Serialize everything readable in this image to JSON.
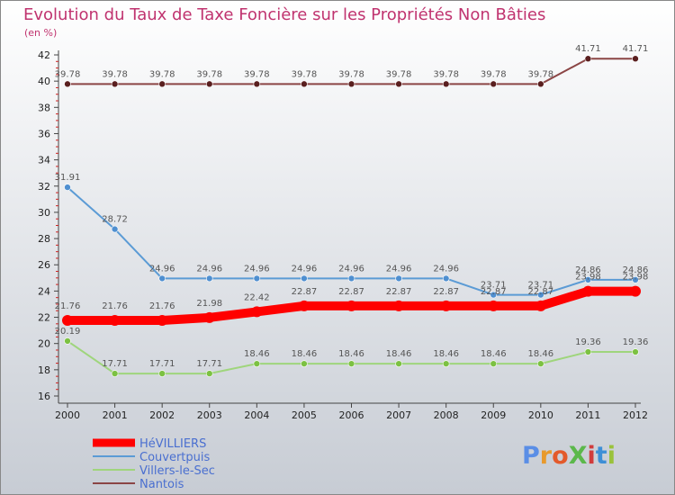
{
  "colors": {
    "title": "#c0336f",
    "legend_text": "#4a6fd0",
    "axis": "#444444",
    "minor_tick": "#cc2222",
    "background_top": "#ffffff",
    "background_bottom": "#c7ccd4"
  },
  "brand": {
    "text": "ProXiti",
    "letter_colors": [
      "#5a8ee6",
      "#e89a2c",
      "#e35a2b",
      "#5bb84b",
      "#d13c3c",
      "#3e8fd6",
      "#9ac23b"
    ]
  },
  "chart_data": {
    "type": "line",
    "title": "Evolution du Taux de Taxe Foncière sur les Propriétés Non Bâties",
    "ylabel": "(en %)",
    "xlabel": "",
    "x": [
      "2000",
      "2001",
      "2002",
      "2003",
      "2004",
      "2005",
      "2006",
      "2007",
      "2008",
      "2009",
      "2010",
      "2011",
      "2012"
    ],
    "ylim": [
      16,
      42
    ],
    "yticks": [
      16,
      18,
      20,
      22,
      24,
      26,
      28,
      30,
      32,
      34,
      36,
      38,
      40,
      42
    ],
    "grid": false,
    "legend": "bottom-left",
    "series": [
      {
        "name": "HéVILLIERS",
        "color": "#ff0000",
        "thick": true,
        "values": [
          21.76,
          21.76,
          21.76,
          21.98,
          22.42,
          22.87,
          22.87,
          22.87,
          22.87,
          22.87,
          22.87,
          23.98,
          23.98
        ],
        "labels": [
          "21.76",
          "21.76",
          "21.76",
          "21.98",
          "22.42",
          "22.87",
          "22.87",
          "22.87",
          "22.87",
          "22.87",
          "22.87",
          "23.98",
          "23.98"
        ]
      },
      {
        "name": "Couvertpuis",
        "color": "#5b9bd5",
        "marker_fill": "#4f8fd0",
        "values": [
          31.91,
          28.72,
          24.96,
          24.96,
          24.96,
          24.96,
          24.96,
          24.96,
          24.96,
          23.71,
          23.71,
          24.86,
          24.86
        ],
        "labels": [
          "31.91",
          "28.72",
          "24.96",
          "24.96",
          "24.96",
          "24.96",
          "24.96",
          "24.96",
          "24.96",
          "23.71",
          "23.71",
          "24.86",
          "24.86"
        ]
      },
      {
        "name": "Villers-le-Sec",
        "color": "#9fd57c",
        "marker_fill": "#7cc142",
        "values": [
          20.19,
          17.71,
          17.71,
          17.71,
          18.46,
          18.46,
          18.46,
          18.46,
          18.46,
          18.46,
          18.46,
          19.36,
          19.36
        ],
        "labels": [
          "20.19",
          "17.71",
          "17.71",
          "17.71",
          "18.46",
          "18.46",
          "18.46",
          "18.46",
          "18.46",
          "18.46",
          "18.46",
          "19.36",
          "19.36"
        ]
      },
      {
        "name": "Nantois",
        "color": "#8b4545",
        "marker_fill": "#5a1f1f",
        "values": [
          39.78,
          39.78,
          39.78,
          39.78,
          39.78,
          39.78,
          39.78,
          39.78,
          39.78,
          39.78,
          39.78,
          41.71,
          41.71
        ],
        "labels": [
          "39.78",
          "39.78",
          "39.78",
          "39.78",
          "39.78",
          "39.78",
          "39.78",
          "39.78",
          "39.78",
          "39.78",
          "39.78",
          "41.71",
          "41.71"
        ]
      }
    ],
    "crowded_labels": {
      "2009": "22.87",
      "2010": "22.87",
      "2011": "23.98",
      "2012": "23.98"
    }
  }
}
